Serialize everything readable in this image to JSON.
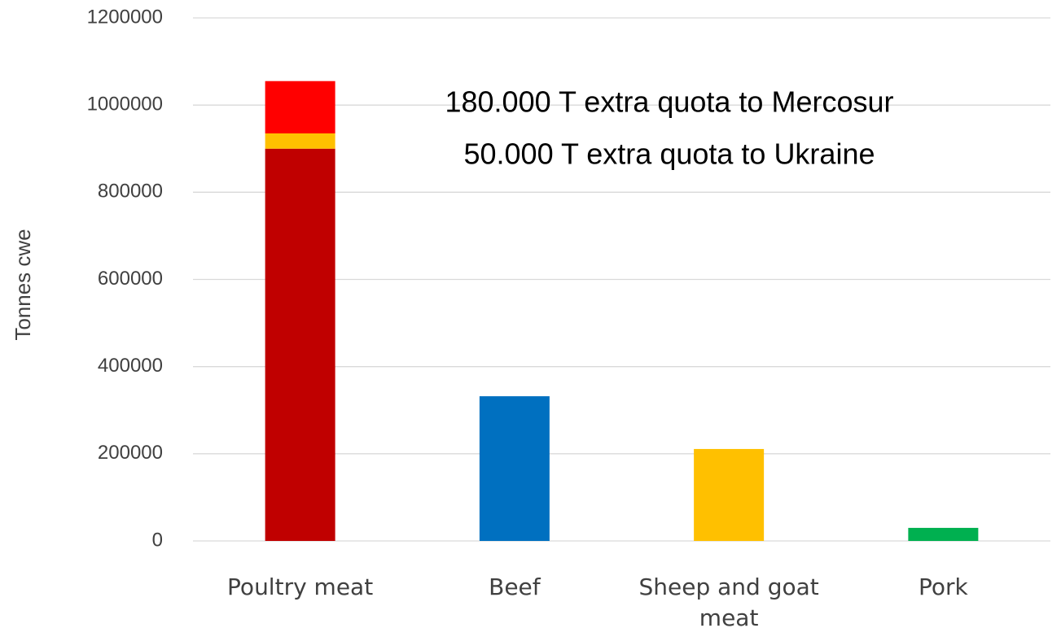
{
  "chart_data": {
    "type": "bar",
    "stacked": true,
    "y_label": "Tonnes cwe",
    "annotations": [
      "180.000 T extra quota to Mercosur",
      "50.000 T extra quota to Ukraine"
    ],
    "categories": [
      "Poultry meat",
      "Beef",
      "Sheep and goat meat",
      "Pork"
    ],
    "series": [
      {
        "values": [
          900000,
          332000,
          211000,
          30000
        ],
        "colors": [
          "#c00000",
          "#0070c0",
          "#ffc000",
          "#00b050"
        ]
      },
      {
        "color": "#ffc000",
        "values": [
          35000,
          null,
          null,
          null
        ]
      },
      {
        "color": "#ff0000",
        "values": [
          120000,
          null,
          null,
          null
        ]
      }
    ],
    "ylim": [
      0,
      1200000
    ],
    "yticks": [
      0,
      200000,
      400000,
      600000,
      800000,
      1000000,
      1200000
    ],
    "grid": true
  }
}
